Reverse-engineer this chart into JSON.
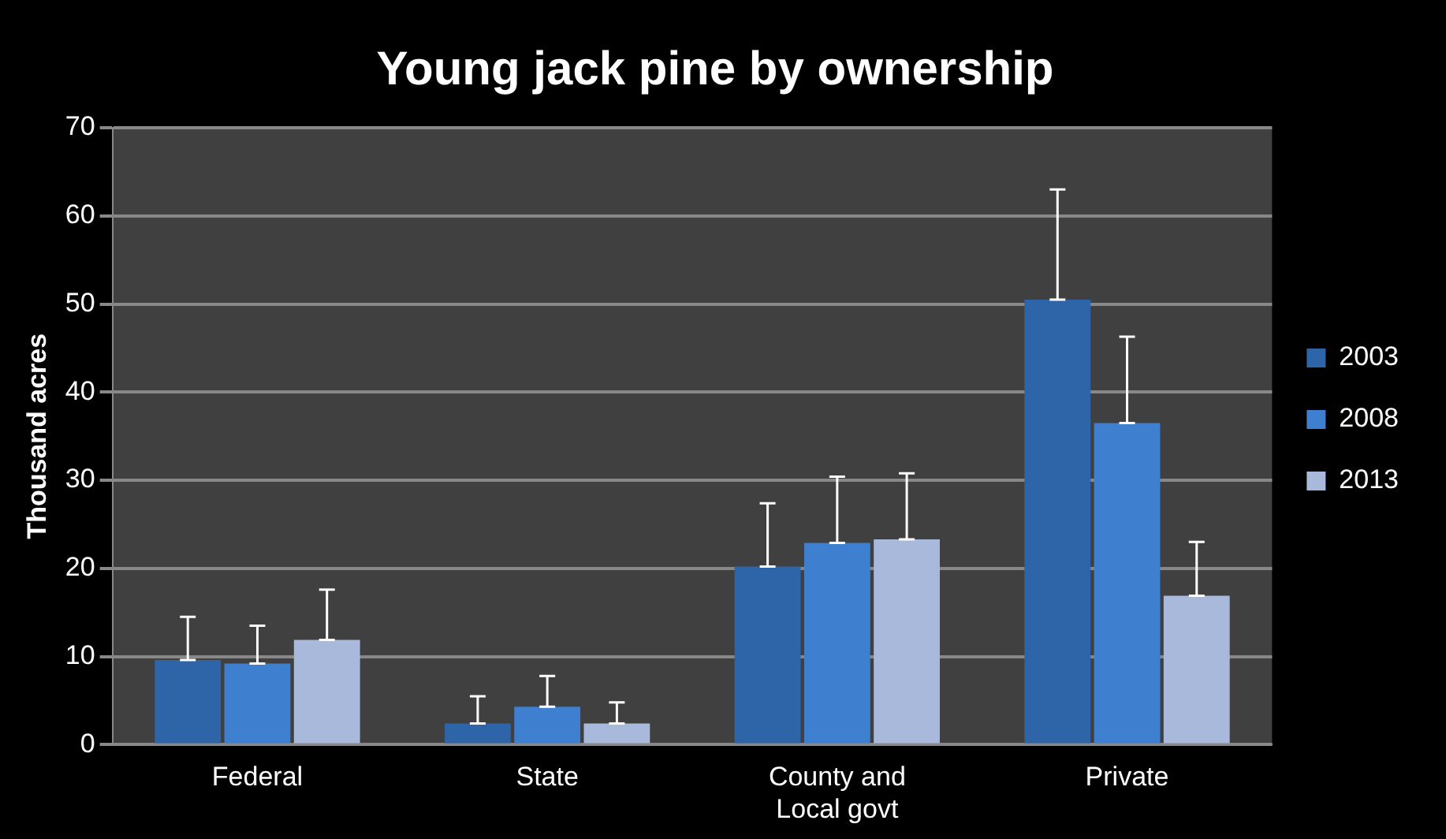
{
  "chart_data": {
    "type": "bar",
    "title": "Young jack pine by ownership",
    "ylabel": "Thousand acres",
    "categories": [
      "Federal",
      "State",
      "County and Local govt",
      "Private"
    ],
    "series": [
      {
        "name": "2003",
        "color": "#2e64a8",
        "values": [
          9.6,
          2.4,
          20.2,
          50.5
        ],
        "errors": [
          [
            9.6,
            14.5
          ],
          [
            2.4,
            5.5
          ],
          [
            20.2,
            27.4
          ],
          [
            50.5,
            63
          ]
        ]
      },
      {
        "name": "2008",
        "color": "#3e7fcf",
        "values": [
          9.2,
          4.3,
          22.9,
          36.5
        ],
        "errors": [
          [
            9.2,
            13.5
          ],
          [
            4.3,
            7.8
          ],
          [
            22.9,
            30.4
          ],
          [
            36.5,
            46.3
          ]
        ]
      },
      {
        "name": "2013",
        "color": "#a8b9dc",
        "values": [
          11.9,
          2.4,
          23.3,
          16.9
        ],
        "errors": [
          [
            11.9,
            17.6
          ],
          [
            2.4,
            4.8
          ],
          [
            23.3,
            30.8
          ],
          [
            16.9,
            23
          ]
        ]
      }
    ],
    "ylim": [
      0,
      70
    ],
    "yticks": [
      0,
      10,
      20,
      30,
      40,
      50,
      60,
      70
    ],
    "grid": "y",
    "legend": "right"
  }
}
